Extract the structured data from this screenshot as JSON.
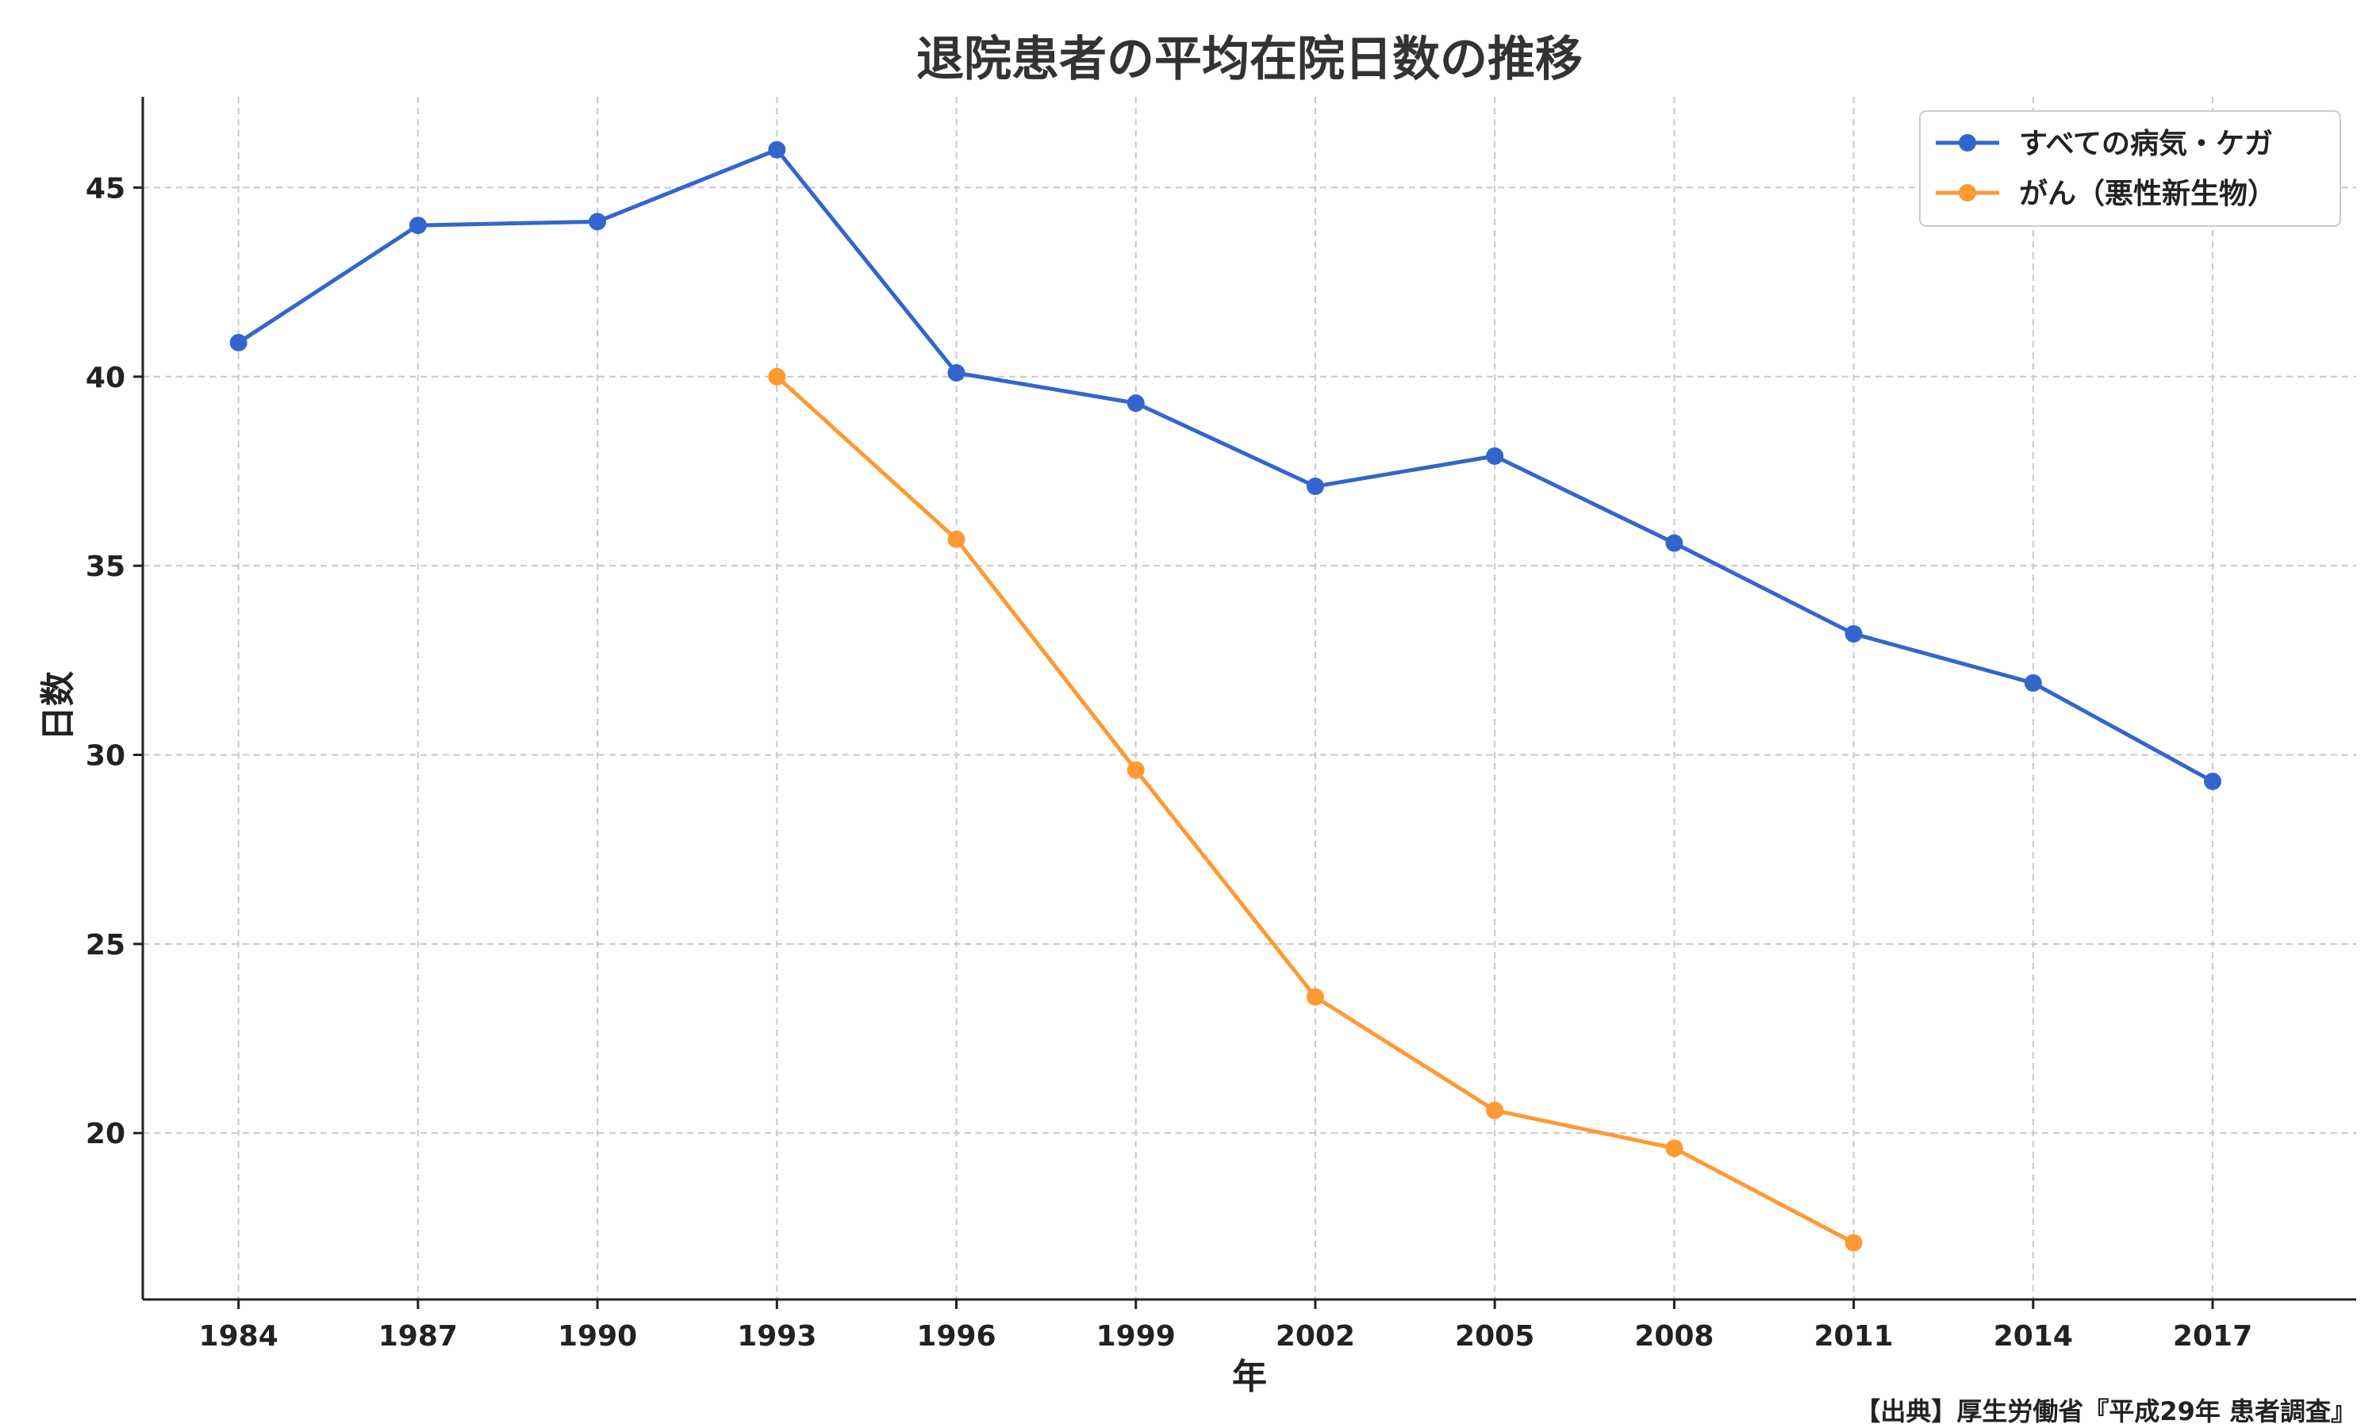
{
  "chart_data": {
    "type": "line",
    "title": "退院患者の平均在院日数の推移",
    "xlabel": "年",
    "ylabel": "日数",
    "x": [
      1984,
      1987,
      1990,
      1993,
      1996,
      1999,
      2002,
      2005,
      2008,
      2011,
      2014,
      2017
    ],
    "x_tick_labels": [
      "1984",
      "1987",
      "1990",
      "1993",
      "1996",
      "1999",
      "2002",
      "2005",
      "2008",
      "2011",
      "2014",
      "2017"
    ],
    "y_ticks": [
      20,
      25,
      30,
      35,
      40,
      45
    ],
    "y_tick_labels": [
      "20",
      "25",
      "30",
      "35",
      "40",
      "45"
    ],
    "xlim": [
      1982.4,
      2019.4
    ],
    "ylim": [
      15.6,
      47.4
    ],
    "grid": true,
    "legend_position": "top-right",
    "series": [
      {
        "name": "すべての病気・ケガ",
        "color": "#3366cc",
        "x": [
          1984,
          1987,
          1990,
          1993,
          1996,
          1999,
          2002,
          2005,
          2008,
          2011,
          2014,
          2017
        ],
        "values": [
          40.9,
          44.0,
          44.1,
          46.0,
          40.1,
          39.3,
          37.1,
          37.9,
          35.6,
          33.2,
          31.9,
          29.3
        ]
      },
      {
        "name": "がん（悪性新生物）",
        "color": "#ff9933",
        "x": [
          1993,
          1996,
          1999,
          2002,
          2005,
          2008,
          2011
        ],
        "values": [
          40.0,
          35.7,
          29.6,
          23.6,
          20.6,
          19.6,
          17.1
        ]
      }
    ]
  },
  "source_note": "【出典】厚生労働省『平成29年 患者調査』"
}
